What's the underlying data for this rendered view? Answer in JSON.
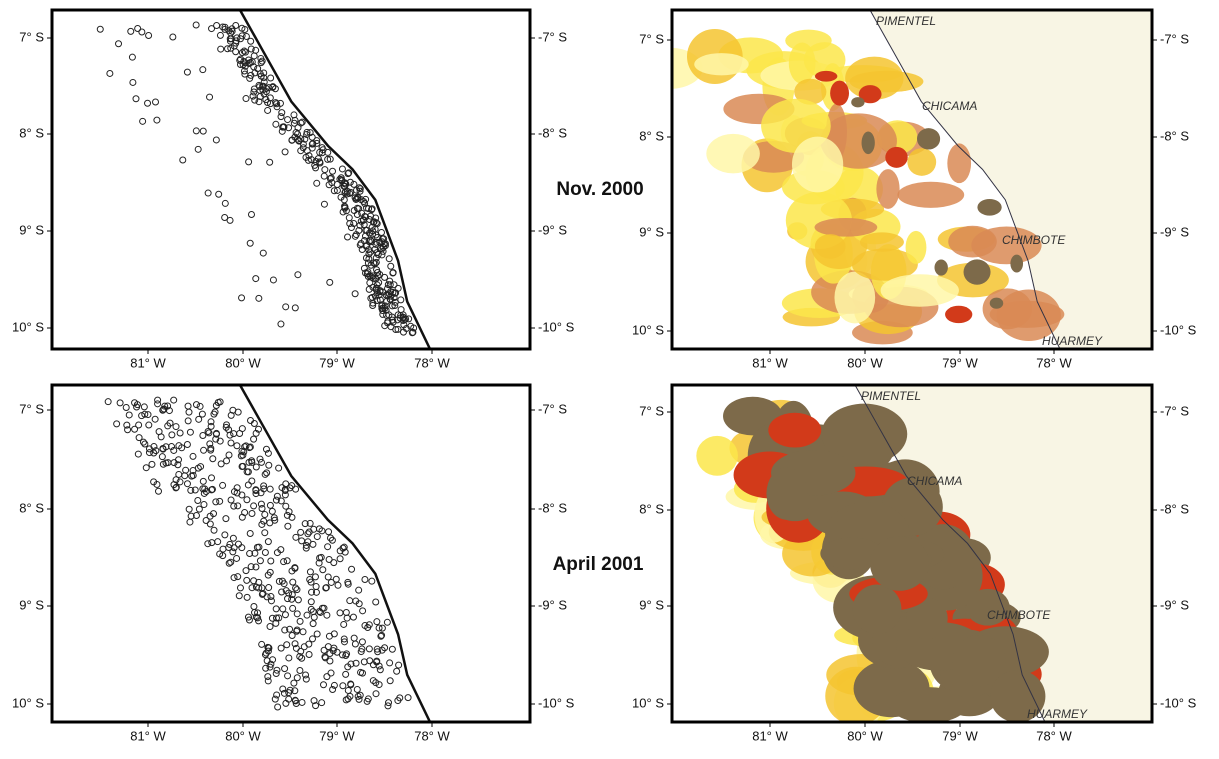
{
  "panels": [
    {
      "yticks": [
        "7° S",
        "8° S",
        "9° S",
        "10° S"
      ],
      "yticks_right": [
        "-7° S",
        "-8° S",
        "-9° S",
        "-10° S"
      ],
      "xticks": [
        "81° W",
        "80° W",
        "79° W",
        "78° W"
      ]
    },
    {
      "yticks": [
        "7° S",
        "8° S",
        "9° S",
        "10° S"
      ],
      "yticks_right": [
        "-7° S",
        "-8° S",
        "-9° S",
        "-10° S"
      ],
      "xticks": [
        "81° W",
        "80° W",
        "79° W",
        "78° W"
      ]
    },
    {
      "yticks": [
        "7° S",
        "8° S",
        "9° S",
        "10° S"
      ],
      "yticks_right": [
        "-7° S",
        "-8° S",
        "-9° S",
        "-10° S"
      ],
      "xticks": [
        "81° W",
        "80° W",
        "79° W",
        "78° W"
      ]
    },
    {
      "yticks": [
        "7° S",
        "8° S",
        "9° S",
        "10° S"
      ],
      "yticks_right": [
        "-7° S",
        "-8° S",
        "-9° S",
        "-10° S"
      ],
      "xticks": [
        "81° W",
        "80° W",
        "79° W",
        "78° W"
      ]
    }
  ],
  "places": [
    "PIMENTEL",
    "CHICAMA",
    "CHIMBOTE",
    "HUARMEY"
  ],
  "periods": [
    "Nov. 2000",
    "April 2001"
  ]
}
